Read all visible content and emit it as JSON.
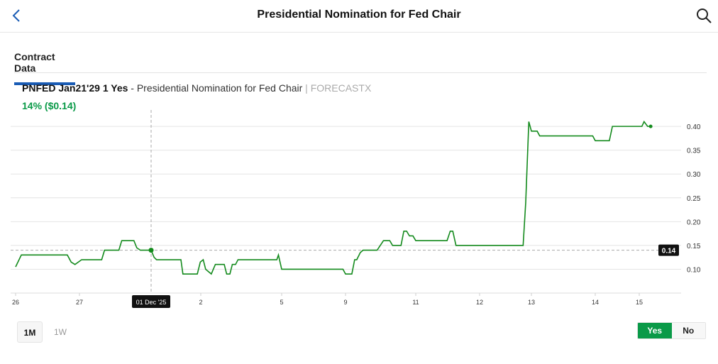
{
  "header": {
    "title": "Presidential Nomination for Fed Chair",
    "back_icon": "chevron-left-icon",
    "search_icon": "search-icon"
  },
  "tabs": [
    {
      "label": "Contract Data",
      "active": true
    }
  ],
  "contract": {
    "symbol": "PNFED Jan21'29 1 Yes",
    "separator": " - ",
    "name": "Presidential Nomination for Fed Chair",
    "source": " | FORECASTX",
    "price": "14% ($0.14)"
  },
  "colors": {
    "line": "#138a1c",
    "accent": "#1a5cb5",
    "yes": "#0a9a48"
  },
  "chart_data": {
    "type": "line",
    "x_ticks": [
      "26",
      "27",
      "01 Dec '25",
      "2",
      "5",
      "9",
      "11",
      "12",
      "13",
      "14",
      "15"
    ],
    "y_ticks": [
      "0.10",
      "0.15",
      "0.20",
      "0.25",
      "0.30",
      "0.35",
      "0.40"
    ],
    "ylim": [
      0.05,
      0.43
    ],
    "grid": true,
    "crosshair": {
      "x_label": "01 Dec '25",
      "y_label": "0.14",
      "x": 2,
      "value": 0.14
    },
    "series": [
      {
        "points": [
          [
            0,
            0.105
          ],
          [
            0.09,
            0.13
          ],
          [
            0.81,
            0.13
          ],
          [
            0.87,
            0.115
          ],
          [
            0.93,
            0.11
          ],
          [
            1.03,
            0.12
          ],
          [
            1.31,
            0.12
          ],
          [
            1.35,
            0.14
          ],
          [
            1.55,
            0.14
          ],
          [
            1.59,
            0.16
          ],
          [
            1.76,
            0.16
          ],
          [
            1.8,
            0.145
          ],
          [
            1.85,
            0.14
          ],
          [
            2.0,
            0.14
          ],
          [
            2.06,
            0.125
          ],
          [
            2.11,
            0.12
          ],
          [
            2.6,
            0.12
          ],
          [
            2.64,
            0.09
          ],
          [
            2.93,
            0.09
          ],
          [
            2.99,
            0.115
          ],
          [
            3.03,
            0.12
          ],
          [
            3.06,
            0.1
          ],
          [
            3.13,
            0.09
          ],
          [
            3.18,
            0.11
          ],
          [
            3.29,
            0.11
          ],
          [
            3.32,
            0.09
          ],
          [
            3.36,
            0.09
          ],
          [
            3.39,
            0.11
          ],
          [
            3.43,
            0.11
          ],
          [
            3.46,
            0.12
          ],
          [
            3.94,
            0.12
          ],
          [
            3.96,
            0.13
          ],
          [
            4.0,
            0.1
          ],
          [
            4.96,
            0.1
          ],
          [
            5.0,
            0.09
          ],
          [
            5.09,
            0.09
          ],
          [
            5.13,
            0.12
          ],
          [
            5.16,
            0.12
          ],
          [
            5.21,
            0.135
          ],
          [
            5.25,
            0.14
          ],
          [
            5.45,
            0.14
          ],
          [
            5.54,
            0.16
          ],
          [
            5.63,
            0.16
          ],
          [
            5.67,
            0.15
          ],
          [
            5.79,
            0.15
          ],
          [
            5.83,
            0.18
          ],
          [
            5.87,
            0.18
          ],
          [
            5.91,
            0.17
          ],
          [
            5.96,
            0.17
          ],
          [
            6.0,
            0.16
          ],
          [
            6.49,
            0.16
          ],
          [
            6.54,
            0.18
          ],
          [
            6.58,
            0.18
          ],
          [
            6.63,
            0.15
          ],
          [
            7.84,
            0.15
          ],
          [
            7.89,
            0.24
          ],
          [
            7.95,
            0.41
          ],
          [
            8.0,
            0.39
          ],
          [
            8.09,
            0.39
          ],
          [
            8.13,
            0.38
          ],
          [
            8.96,
            0.38
          ],
          [
            9.0,
            0.37
          ],
          [
            9.32,
            0.37
          ],
          [
            9.39,
            0.4
          ],
          [
            10.06,
            0.4
          ],
          [
            10.11,
            0.41
          ],
          [
            10.19,
            0.4
          ],
          [
            10.26,
            0.4
          ]
        ]
      }
    ]
  },
  "range": {
    "options": [
      "1M",
      "1W"
    ],
    "selected": "1M"
  },
  "outcome": {
    "yes": "Yes",
    "no": "No",
    "selected": "Yes"
  }
}
